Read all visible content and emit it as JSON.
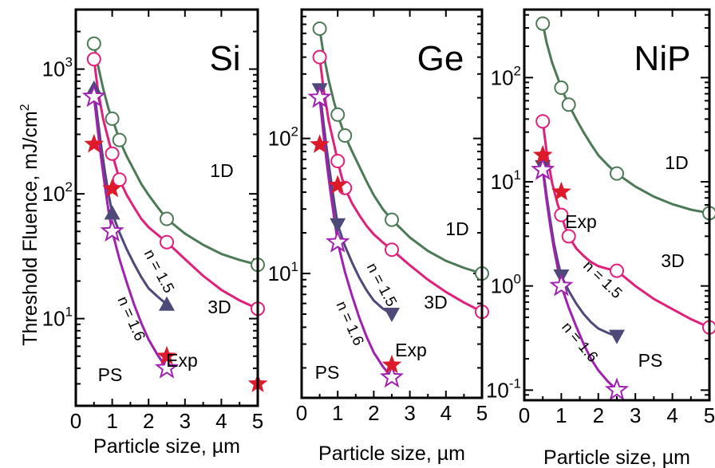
{
  "figure": {
    "ylabel": "Threshold Fluence, mJ/cm",
    "ylabel_sup": "2",
    "xlabel": "Particle size, µm"
  },
  "colors": {
    "d1": "#4c7a57",
    "d3": "#e0207a",
    "n15": "#4d4a7a",
    "n16": "#a020b0",
    "exp": "#dd1a2a"
  },
  "chart_data": [
    {
      "type": "line",
      "title": "Si",
      "xlabel": "Particle size, µm",
      "ylabel": "Threshold Fluence, mJ/cm²",
      "xlim": [
        0,
        5
      ],
      "ylim": [
        2,
        3000
      ],
      "yscale": "log",
      "xticks": [
        "0",
        "1",
        "2",
        "3",
        "4",
        "5"
      ],
      "yticks": [
        {
          "value": 10,
          "label": "10",
          "exp": "1"
        },
        {
          "value": 100,
          "label": "10",
          "exp": "2"
        },
        {
          "value": 1000,
          "label": "10",
          "exp": "3"
        }
      ],
      "annotations": {
        "d1": "1D",
        "d3": "3D",
        "n15": "n = 1.5",
        "n16": "n = 1.6",
        "exp": "Exp",
        "ps": "PS"
      },
      "series": [
        {
          "key": "d1",
          "marker": "circle",
          "x": [
            0.5,
            1.0,
            1.2,
            2.5,
            5.0
          ],
          "y": [
            1600,
            400,
            270,
            63,
            27
          ],
          "curve_x": [
            0.5,
            0.6,
            0.75,
            0.9,
            1.0,
            1.1,
            1.2,
            1.4,
            1.6,
            1.8,
            2.0,
            2.25,
            2.5,
            3.0,
            3.5,
            4.0,
            4.5,
            5.0
          ],
          "curve_y": [
            1600,
            1100,
            700,
            480,
            400,
            330,
            270,
            200,
            155,
            120,
            98,
            78,
            63,
            48,
            39,
            33,
            29.5,
            27
          ]
        },
        {
          "key": "d3",
          "marker": "circle",
          "x": [
            0.5,
            1.0,
            1.2,
            2.5,
            5.0
          ],
          "y": [
            1200,
            210,
            130,
            41,
            12
          ],
          "curve_x": [
            0.5,
            0.6,
            0.75,
            0.9,
            1.0,
            1.1,
            1.2,
            1.4,
            1.6,
            1.8,
            2.0,
            2.25,
            2.5,
            3.0,
            3.5,
            4.0,
            4.5,
            5.0
          ],
          "curve_y": [
            1200,
            700,
            400,
            270,
            210,
            165,
            130,
            98,
            78,
            63,
            54,
            47,
            41,
            30,
            22,
            17,
            14,
            12
          ]
        },
        {
          "key": "n15",
          "marker": "triangle-up",
          "x": [
            0.5,
            1.0,
            2.5
          ],
          "y": [
            700,
            70,
            13
          ],
          "curve_x": [
            0.5,
            0.6,
            0.7,
            0.8,
            0.9,
            1.0,
            1.2,
            1.4,
            1.6,
            1.8,
            2.0,
            2.25,
            2.5
          ],
          "curve_y": [
            700,
            400,
            240,
            150,
            100,
            70,
            49,
            36,
            27.5,
            21.5,
            17.5,
            15,
            13
          ]
        },
        {
          "key": "n16",
          "marker": "star-open",
          "x": [
            0.5,
            1.0,
            2.5
          ],
          "y": [
            600,
            50,
            4
          ],
          "curve_x": [
            0.5,
            0.6,
            0.7,
            0.8,
            0.9,
            1.0,
            1.2,
            1.4,
            1.6,
            1.8,
            2.0,
            2.25,
            2.5
          ],
          "curve_y": [
            600,
            330,
            190,
            115,
            73,
            50,
            30,
            19.5,
            13,
            9.2,
            6.8,
            5.1,
            4
          ]
        },
        {
          "key": "exp",
          "marker": "star-filled",
          "x": [
            0.5,
            1.0,
            2.5,
            5.0
          ],
          "y": [
            250,
            110,
            5,
            3
          ]
        }
      ]
    },
    {
      "type": "line",
      "title": "Ge",
      "xlabel": "Particle size, µm",
      "ylabel": "Threshold Fluence, mJ/cm²",
      "xlim": [
        0,
        5
      ],
      "ylim": [
        1.2,
        900
      ],
      "yscale": "log",
      "xticks": [
        "0",
        "1",
        "2",
        "3",
        "4",
        "5"
      ],
      "yticks": [
        {
          "value": 10,
          "label": "10",
          "exp": "1"
        },
        {
          "value": 100,
          "label": "10",
          "exp": "2"
        }
      ],
      "annotations": {
        "d1": "1D",
        "d3": "3D",
        "n15": "n = 1.5",
        "n16": "n = 1.6",
        "exp": "Exp",
        "ps": "PS"
      },
      "series": [
        {
          "key": "d1",
          "marker": "circle",
          "x": [
            0.5,
            1.0,
            1.2,
            2.5,
            5.0
          ],
          "y": [
            650,
            150,
            105,
            25,
            10
          ],
          "curve_x": [
            0.5,
            0.6,
            0.75,
            0.9,
            1.0,
            1.1,
            1.2,
            1.4,
            1.6,
            1.8,
            2.0,
            2.25,
            2.5,
            3.0,
            3.5,
            4.0,
            4.5,
            5.0
          ],
          "curve_y": [
            650,
            430,
            270,
            185,
            150,
            125,
            105,
            80,
            62,
            48,
            38,
            30,
            25,
            18.5,
            14.7,
            12.4,
            11,
            10
          ]
        },
        {
          "key": "d3",
          "marker": "circle",
          "x": [
            0.5,
            1.0,
            1.2,
            2.5,
            5.0
          ],
          "y": [
            400,
            68,
            43,
            15,
            5.2
          ],
          "curve_x": [
            0.5,
            0.6,
            0.75,
            0.9,
            1.0,
            1.1,
            1.2,
            1.4,
            1.6,
            1.8,
            2.0,
            2.25,
            2.5,
            3.0,
            3.5,
            4.0,
            4.5,
            5.0
          ],
          "curve_y": [
            400,
            240,
            135,
            90,
            68,
            53,
            43,
            33,
            27,
            22.5,
            19.5,
            17,
            15,
            11.5,
            9,
            7.3,
            6.1,
            5.2
          ]
        },
        {
          "key": "n15",
          "marker": "triangle-down",
          "x": [
            0.5,
            1.0,
            2.5
          ],
          "y": [
            230,
            23,
            5
          ],
          "curve_x": [
            0.5,
            0.6,
            0.7,
            0.8,
            0.9,
            1.0,
            1.2,
            1.4,
            1.6,
            1.8,
            2.0,
            2.25,
            2.5
          ],
          "curve_y": [
            230,
            135,
            82,
            52,
            34,
            23,
            16,
            12,
            9.3,
            7.5,
            6.3,
            5.5,
            5
          ]
        },
        {
          "key": "n16",
          "marker": "star-open",
          "x": [
            0.5,
            1.0,
            2.5
          ],
          "y": [
            200,
            17,
            1.7
          ],
          "curve_x": [
            0.5,
            0.6,
            0.7,
            0.8,
            0.9,
            1.0,
            1.2,
            1.4,
            1.6,
            1.8,
            2.0,
            2.25,
            2.5
          ],
          "curve_y": [
            200,
            112,
            65,
            40,
            26,
            17,
            10.3,
            6.8,
            4.7,
            3.4,
            2.6,
            2.05,
            1.7
          ]
        },
        {
          "key": "exp",
          "marker": "star-filled",
          "x": [
            0.5,
            1.0,
            2.5
          ],
          "y": [
            90,
            45,
            2.1
          ]
        }
      ]
    },
    {
      "type": "line",
      "title": "NiP",
      "xlabel": "Particle size, µm",
      "ylabel": "Threshold Fluence, mJ/cm²",
      "xlim": [
        0,
        5
      ],
      "ylim": [
        0.08,
        450
      ],
      "yscale": "log",
      "xticks": [
        "0",
        "1",
        "2",
        "3",
        "4",
        "5"
      ],
      "yticks": [
        {
          "value": 0.1,
          "label": "10",
          "exp": "-1"
        },
        {
          "value": 1,
          "label": "10",
          "exp": "0"
        },
        {
          "value": 10,
          "label": "10",
          "exp": "1"
        },
        {
          "value": 100,
          "label": "10",
          "exp": "2"
        }
      ],
      "annotations": {
        "d1": "1D",
        "d3": "3D",
        "n15": "n = 1.5",
        "n16": "n = 1.6",
        "exp": "Exp",
        "ps": "PS"
      },
      "series": [
        {
          "key": "d1",
          "marker": "circle",
          "x": [
            0.5,
            1.0,
            1.2,
            2.5,
            5.0
          ],
          "y": [
            330,
            80,
            55,
            12,
            5
          ],
          "curve_x": [
            0.5,
            0.6,
            0.75,
            0.9,
            1.0,
            1.1,
            1.2,
            1.4,
            1.6,
            1.8,
            2.0,
            2.25,
            2.5,
            3.0,
            3.5,
            4.0,
            4.5,
            5.0
          ],
          "curve_y": [
            330,
            220,
            140,
            100,
            80,
            66,
            55,
            40,
            30,
            23,
            18,
            14.5,
            12,
            9,
            7.2,
            6.1,
            5.4,
            5
          ]
        },
        {
          "key": "d3",
          "marker": "circle",
          "x": [
            0.5,
            1.0,
            1.2,
            2.5,
            5.0
          ],
          "y": [
            38,
            4.8,
            3,
            1.4,
            0.4
          ],
          "curve_x": [
            0.5,
            0.6,
            0.75,
            0.9,
            1.0,
            1.1,
            1.2,
            1.4,
            1.6,
            1.8,
            2.0,
            2.25,
            2.5,
            3.0,
            3.5,
            4.0,
            4.5,
            5.0
          ],
          "curve_y": [
            38,
            20,
            9.8,
            6.1,
            4.8,
            3.7,
            3,
            2.3,
            1.95,
            1.7,
            1.55,
            1.46,
            1.4,
            1.0,
            0.75,
            0.6,
            0.48,
            0.4
          ]
        },
        {
          "key": "n15",
          "marker": "triangle-down",
          "x": [
            0.5,
            1.0,
            2.5
          ],
          "y": [
            14,
            1.25,
            0.33
          ],
          "curve_x": [
            0.5,
            0.6,
            0.7,
            0.8,
            0.9,
            1.0,
            1.2,
            1.4,
            1.6,
            1.8,
            2.0,
            2.25,
            2.5
          ],
          "curve_y": [
            14,
            7.5,
            4.3,
            2.6,
            1.75,
            1.25,
            0.9,
            0.68,
            0.54,
            0.45,
            0.39,
            0.355,
            0.33
          ]
        },
        {
          "key": "n16",
          "marker": "star-open",
          "x": [
            0.5,
            1.0,
            2.5
          ],
          "y": [
            13,
            1.0,
            0.1
          ],
          "curve_x": [
            0.5,
            0.6,
            0.7,
            0.8,
            0.9,
            1.0,
            1.2,
            1.4,
            1.6,
            1.8,
            2.0,
            2.25,
            2.5
          ],
          "curve_y": [
            13,
            6.8,
            3.8,
            2.3,
            1.5,
            1.0,
            0.62,
            0.41,
            0.28,
            0.2,
            0.155,
            0.122,
            0.1
          ]
        },
        {
          "key": "exp",
          "marker": "star-filled",
          "x": [
            0.5,
            1.0
          ],
          "y": [
            18,
            8
          ]
        }
      ]
    }
  ]
}
